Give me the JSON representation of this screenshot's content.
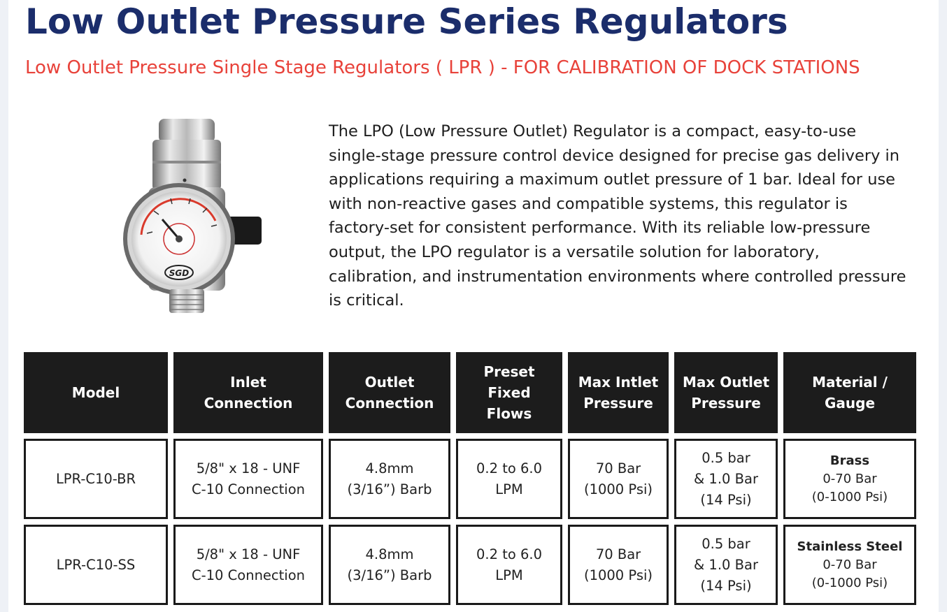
{
  "header": {
    "title": "Low Outlet Pressure Series Regulators",
    "subtitle": "Low Outlet Pressure Single Stage Regulators ( LPR ) - FOR CALIBRATION OF DOCK STATIONS"
  },
  "product": {
    "image_icon": "pressure-regulator-icon",
    "gauge_logo_text": "SGD"
  },
  "description": "The LPO (Low Pressure Outlet) Regulator is a compact, easy-to-use single-stage pressure control device designed for precise gas delivery in applications requiring a maximum outlet pressure of 1 bar. Ideal for use with non-reactive gases and compatible systems, this regulator is factory-set for consistent performance. With its reliable low-pressure output, the LPO regulator is a versatile solution for laboratory, calibration, and instrumentation environments where controlled pressure is critical.",
  "table": {
    "headers": [
      [
        "Model"
      ],
      [
        "Inlet",
        "Connection"
      ],
      [
        "Outlet",
        "Connection"
      ],
      [
        "Preset",
        "Fixed",
        "Flows"
      ],
      [
        "Max Intlet",
        "Pressure"
      ],
      [
        "Max Outlet",
        "Pressure"
      ],
      [
        "Material /",
        "Gauge"
      ]
    ],
    "rows": [
      {
        "model": "LPR-C10-BR",
        "inlet": [
          "5/8\" x 18 - UNF",
          "C-10 Connection"
        ],
        "outlet": [
          "4.8mm",
          "(3/16”) Barb"
        ],
        "flows": [
          "0.2 to 6.0",
          "LPM"
        ],
        "max_inlet": [
          "70 Bar",
          "(1000 Psi)"
        ],
        "max_outlet": [
          "0.5 bar",
          "& 1.0 Bar",
          "(14 Psi)"
        ],
        "material": {
          "name": "Brass",
          "range": "0-70 Bar",
          "psi": "(0-1000 Psi)"
        }
      },
      {
        "model": "LPR-C10-SS",
        "inlet": [
          "5/8\" x 18 - UNF",
          "C-10 Connection"
        ],
        "outlet": [
          "4.8mm",
          "(3/16”) Barb"
        ],
        "flows": [
          "0.2 to 6.0",
          "LPM"
        ],
        "max_inlet": [
          "70 Bar",
          "(1000 Psi)"
        ],
        "max_outlet": [
          "0.5 bar",
          "& 1.0 Bar",
          "(14 Psi)"
        ],
        "material": {
          "name": "Stainless Steel",
          "range": "0-70 Bar",
          "psi": "(0-1000 Psi)"
        }
      }
    ]
  },
  "colors": {
    "title": "#1b2d6b",
    "subtitle": "#e8423a",
    "header_bg": "#1c1c1c",
    "border": "#1a1a1a"
  }
}
